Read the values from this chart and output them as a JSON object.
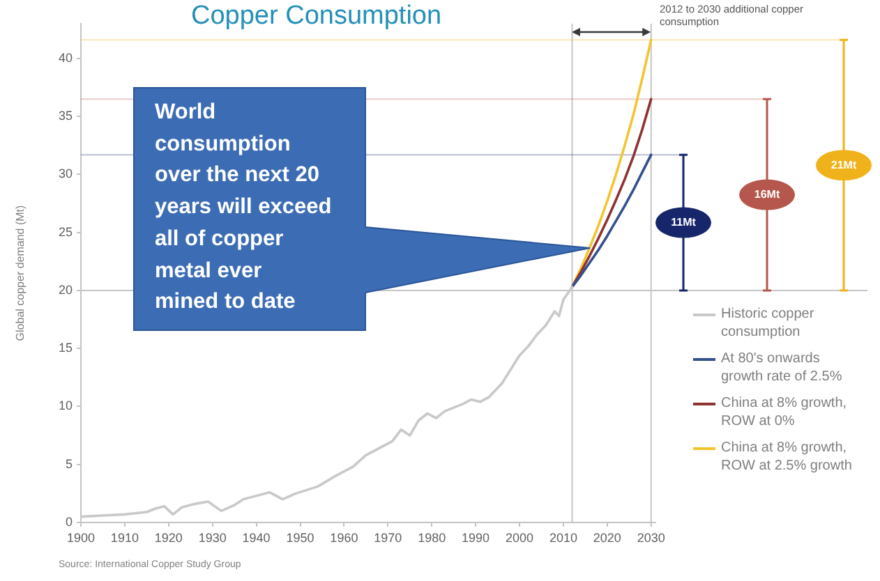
{
  "chart_data": {
    "type": "line",
    "title": "Copper Consumption",
    "ylabel": "Global copper demand (Mt)",
    "xlim": [
      1900,
      2031
    ],
    "xticks": [
      1900,
      1910,
      1920,
      1930,
      1940,
      1950,
      1960,
      1970,
      1980,
      1990,
      2000,
      2010,
      2020,
      2030
    ],
    "ylim": [
      0,
      43
    ],
    "yticks": [
      0,
      5,
      10,
      15,
      20,
      25,
      30,
      35,
      40
    ],
    "marker": "none",
    "legend": "right",
    "series": [
      {
        "name": "Historic copper consumption",
        "color": "#c9c9c9",
        "x": [
          1900,
          1905,
          1910,
          1915,
          1917,
          1919,
          1921,
          1923,
          1926,
          1929,
          1932,
          1935,
          1937,
          1939,
          1943,
          1946,
          1949,
          1954,
          1958,
          1962,
          1965,
          1968,
          1971,
          1973,
          1975,
          1977,
          1979,
          1981,
          1983,
          1987,
          1989,
          1991,
          1993,
          1996,
          1998,
          2000,
          2002,
          2004,
          2006,
          2008,
          2009,
          2010,
          2012
        ],
        "values": [
          0.5,
          0.6,
          0.7,
          0.9,
          1.2,
          1.4,
          0.7,
          1.3,
          1.6,
          1.8,
          1.0,
          1.5,
          2.0,
          2.2,
          2.6,
          2.0,
          2.5,
          3.1,
          4.0,
          4.8,
          5.8,
          6.4,
          7.0,
          8.0,
          7.5,
          8.8,
          9.4,
          9.0,
          9.6,
          10.2,
          10.6,
          10.4,
          10.8,
          12.0,
          13.2,
          14.4,
          15.2,
          16.2,
          17.0,
          18.2,
          17.8,
          19.2,
          20.3
        ]
      },
      {
        "name": "At 80's onwards growth rate of 2.5%",
        "color": "#34508f",
        "x": [
          2012,
          2014,
          2016,
          2018,
          2020,
          2022,
          2024,
          2026,
          2028,
          2030
        ],
        "values": [
          20.3,
          21.3,
          22.4,
          23.5,
          24.7,
          26.0,
          27.3,
          28.7,
          30.2,
          31.7
        ]
      },
      {
        "name": "China at 8% growth, ROW at 0%",
        "color": "#8e3232",
        "x": [
          2012,
          2014,
          2016,
          2018,
          2020,
          2022,
          2024,
          2026,
          2028,
          2030
        ],
        "values": [
          20.3,
          21.6,
          23.0,
          24.5,
          26.1,
          27.8,
          29.6,
          31.6,
          33.9,
          36.5
        ]
      },
      {
        "name": "China at 8% growth, ROW at 2.5% growth",
        "color": "#f4c430",
        "x": [
          2012,
          2014,
          2016,
          2018,
          2020,
          2022,
          2024,
          2026,
          2028,
          2030
        ],
        "values": [
          20.3,
          21.9,
          23.7,
          25.6,
          27.7,
          30.0,
          32.5,
          35.2,
          38.3,
          41.6
        ]
      }
    ],
    "ref_lines": [
      {
        "axis": "x",
        "value": 2012
      },
      {
        "axis": "x",
        "value": 2030
      },
      {
        "axis": "y",
        "value": 20
      },
      {
        "axis": "y",
        "value": 31.7,
        "color": "#17266b"
      },
      {
        "axis": "y",
        "value": 36.5,
        "color": "#b5574c"
      },
      {
        "axis": "y",
        "value": 41.6,
        "color": "#f0b21a"
      }
    ],
    "annotations": [
      "2012 to 2030 additional copper consumption",
      "World\nconsumption\nover the next 20\nyears will exceed\nall of copper\nmetal ever\nmined to date",
      "11Mt",
      "16Mt",
      "21Mt",
      "Source: International Copper Study Group"
    ]
  }
}
